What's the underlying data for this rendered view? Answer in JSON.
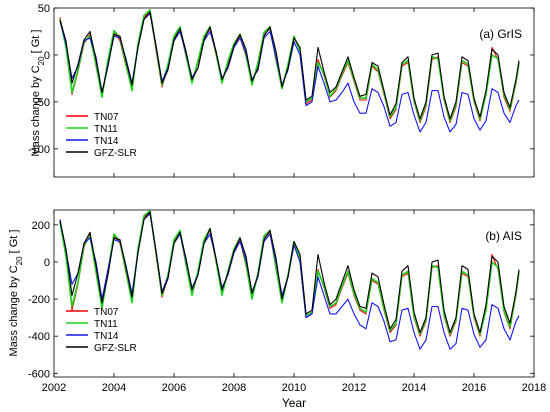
{
  "figure": {
    "xlabel": "Year",
    "x_ticks": [
      2002,
      2004,
      2006,
      2008,
      2010,
      2012,
      2014,
      2016,
      2018
    ]
  },
  "chart_data": [
    {
      "type": "line",
      "panel": "(a) GrIS",
      "ylabel": "Mass change by C",
      "ylabel_sub": "20",
      "ylabel_unit": " [ Gt ]",
      "xlim": [
        2002,
        2018
      ],
      "ylim": [
        -130,
        50
      ],
      "y_ticks": [
        50,
        0,
        -50,
        -100
      ],
      "grid": false,
      "legend_position": "left",
      "x": [
        2002.2,
        2002.4,
        2002.6,
        2002.8,
        2003.0,
        2003.2,
        2003.4,
        2003.6,
        2003.8,
        2004.0,
        2004.2,
        2004.4,
        2004.6,
        2004.8,
        2005.0,
        2005.2,
        2005.4,
        2005.6,
        2005.8,
        2006.0,
        2006.2,
        2006.4,
        2006.6,
        2006.8,
        2007.0,
        2007.2,
        2007.4,
        2007.6,
        2007.8,
        2008.0,
        2008.2,
        2008.4,
        2008.6,
        2008.8,
        2009.0,
        2009.2,
        2009.4,
        2009.6,
        2009.8,
        2010.0,
        2010.2,
        2010.4,
        2010.6,
        2010.8,
        2011.0,
        2011.2,
        2011.4,
        2011.6,
        2011.8,
        2012.0,
        2012.2,
        2012.4,
        2012.6,
        2012.8,
        2013.0,
        2013.2,
        2013.4,
        2013.6,
        2013.8,
        2014.0,
        2014.2,
        2014.4,
        2014.6,
        2014.8,
        2015.0,
        2015.2,
        2015.4,
        2015.6,
        2015.8,
        2016.0,
        2016.2,
        2016.4,
        2016.6,
        2016.8,
        2017.0,
        2017.2,
        2017.4,
        2017.5
      ],
      "series": [
        {
          "name": "TN07",
          "color": "#ff0000",
          "values": [
            40,
            10,
            -42,
            -18,
            12,
            22,
            -12,
            -44,
            -8,
            25,
            15,
            -12,
            -35,
            10,
            40,
            46,
            5,
            -34,
            -12,
            18,
            28,
            -2,
            -28,
            -8,
            18,
            28,
            0,
            -28,
            -8,
            10,
            20,
            -2,
            -30,
            -10,
            22,
            28,
            -6,
            -35,
            -12,
            18,
            5,
            -52,
            -48,
            -5,
            -22,
            -45,
            -38,
            -22,
            -8,
            -28,
            -48,
            -48,
            -12,
            -18,
            -42,
            -68,
            -58,
            -12,
            -8,
            -50,
            -72,
            -55,
            -5,
            -2,
            -48,
            -72,
            -55,
            -8,
            -12,
            -50,
            -70,
            -40,
            8,
            -5,
            -45,
            -60,
            -30,
            -10
          ]
        },
        {
          "name": "TN11",
          "color": "#1fd01f",
          "values": [
            38,
            8,
            -40,
            -16,
            14,
            20,
            -10,
            -45,
            -5,
            26,
            18,
            -10,
            -38,
            12,
            42,
            48,
            8,
            -32,
            -10,
            20,
            30,
            0,
            -30,
            -6,
            20,
            30,
            2,
            -30,
            -6,
            12,
            22,
            0,
            -32,
            -8,
            24,
            30,
            -4,
            -36,
            -10,
            20,
            4,
            -50,
            -46,
            -8,
            -20,
            -44,
            -36,
            -20,
            -6,
            -26,
            -46,
            -46,
            -10,
            -16,
            -40,
            -66,
            -56,
            -10,
            -6,
            -48,
            -70,
            -52,
            -2,
            -4,
            -46,
            -70,
            -52,
            -6,
            -10,
            -48,
            -68,
            -42,
            0,
            -4,
            -42,
            -58,
            -28,
            -8
          ]
        },
        {
          "name": "TN14",
          "color": "#1515f0",
          "values": [
            36,
            12,
            -25,
            -12,
            15,
            18,
            -2,
            -40,
            -10,
            20,
            18,
            -4,
            -30,
            8,
            38,
            44,
            10,
            -28,
            -14,
            15,
            25,
            2,
            -24,
            -14,
            15,
            25,
            4,
            -25,
            -14,
            8,
            18,
            2,
            -26,
            -16,
            18,
            25,
            -2,
            -32,
            -16,
            14,
            0,
            -54,
            -50,
            -12,
            -30,
            -50,
            -48,
            -40,
            -30,
            -50,
            -62,
            -62,
            -36,
            -40,
            -55,
            -76,
            -72,
            -42,
            -40,
            -64,
            -82,
            -72,
            -38,
            -38,
            -66,
            -82,
            -74,
            -40,
            -42,
            -68,
            -80,
            -70,
            -36,
            -40,
            -62,
            -72,
            -54,
            -48
          ]
        },
        {
          "name": "GFZ-SLR",
          "color": "#000000",
          "values": [
            37,
            15,
            -30,
            -10,
            16,
            25,
            -5,
            -40,
            -12,
            22,
            20,
            -6,
            -32,
            8,
            38,
            46,
            10,
            -30,
            -16,
            16,
            28,
            4,
            -26,
            -14,
            16,
            30,
            4,
            -26,
            -12,
            10,
            22,
            6,
            -28,
            -14,
            20,
            30,
            4,
            -34,
            -14,
            18,
            8,
            -48,
            -44,
            8,
            -18,
            -40,
            -34,
            -18,
            -2,
            -24,
            -44,
            -42,
            -8,
            -12,
            -38,
            -64,
            -52,
            -8,
            -2,
            -46,
            -68,
            -50,
            0,
            2,
            -44,
            -68,
            -50,
            -2,
            -6,
            -46,
            -66,
            -38,
            6,
            0,
            -40,
            -56,
            -26,
            -6
          ]
        }
      ]
    },
    {
      "type": "line",
      "panel": "(b) AIS",
      "ylabel": "Mass change by C",
      "ylabel_sub": "20",
      "ylabel_unit": " [ Gt ]",
      "xlim": [
        2002,
        2018
      ],
      "ylim": [
        -620,
        280
      ],
      "y_ticks": [
        200,
        0,
        -200,
        -400,
        -600
      ],
      "grid": false,
      "legend_position": "left",
      "x": [
        2002.2,
        2002.4,
        2002.6,
        2002.8,
        2003.0,
        2003.2,
        2003.4,
        2003.6,
        2003.8,
        2004.0,
        2004.2,
        2004.4,
        2004.6,
        2004.8,
        2005.0,
        2005.2,
        2005.4,
        2005.6,
        2005.8,
        2006.0,
        2006.2,
        2006.4,
        2006.6,
        2006.8,
        2007.0,
        2007.2,
        2007.4,
        2007.6,
        2007.8,
        2008.0,
        2008.2,
        2008.4,
        2008.6,
        2008.8,
        2009.0,
        2009.2,
        2009.4,
        2009.6,
        2009.8,
        2010.0,
        2010.2,
        2010.4,
        2010.6,
        2010.8,
        2011.0,
        2011.2,
        2011.4,
        2011.6,
        2011.8,
        2012.0,
        2012.2,
        2012.4,
        2012.6,
        2012.8,
        2013.0,
        2013.2,
        2013.4,
        2013.6,
        2013.8,
        2014.0,
        2014.2,
        2014.4,
        2014.6,
        2014.8,
        2015.0,
        2015.2,
        2015.4,
        2015.6,
        2015.8,
        2016.0,
        2016.2,
        2016.4,
        2016.6,
        2016.8,
        2017.0,
        2017.2,
        2017.4,
        2017.5
      ],
      "series": [
        {
          "name": "TN07",
          "color": "#ff0000",
          "values": [
            225,
            40,
            -260,
            -120,
            80,
            150,
            -60,
            -240,
            -60,
            140,
            100,
            -60,
            -200,
            60,
            240,
            270,
            40,
            -190,
            -80,
            110,
            160,
            -20,
            -170,
            -60,
            110,
            170,
            0,
            -170,
            -60,
            60,
            120,
            -20,
            -190,
            -70,
            130,
            160,
            -40,
            -210,
            -80,
            100,
            20,
            -300,
            -280,
            -40,
            -140,
            -250,
            -230,
            -140,
            -60,
            -180,
            -260,
            -280,
            -100,
            -120,
            -260,
            -380,
            -340,
            -80,
            -60,
            -300,
            -400,
            -320,
            -30,
            -20,
            -290,
            -400,
            -320,
            -60,
            -80,
            -300,
            -400,
            -250,
            40,
            -40,
            -270,
            -360,
            -180,
            -60
          ]
        },
        {
          "name": "TN11",
          "color": "#1fd01f",
          "values": [
            215,
            30,
            -240,
            -110,
            90,
            140,
            -50,
            -250,
            -50,
            150,
            110,
            -50,
            -220,
            70,
            250,
            275,
            50,
            -180,
            -70,
            120,
            170,
            -10,
            -180,
            -50,
            120,
            180,
            10,
            -180,
            -50,
            70,
            130,
            -10,
            -200,
            -60,
            140,
            170,
            -30,
            -220,
            -70,
            110,
            10,
            -290,
            -270,
            -50,
            -130,
            -240,
            -220,
            -130,
            -50,
            -170,
            -250,
            -270,
            -90,
            -110,
            -250,
            -370,
            -330,
            -70,
            -50,
            -290,
            -390,
            -310,
            -20,
            -30,
            -280,
            -390,
            -310,
            -50,
            -70,
            -290,
            -390,
            -260,
            0,
            -30,
            -260,
            -350,
            -170,
            -50
          ]
        },
        {
          "name": "TN14",
          "color": "#1515f0",
          "values": [
            230,
            60,
            -120,
            -60,
            100,
            130,
            0,
            -200,
            -40,
            120,
            110,
            -20,
            -170,
            50,
            230,
            260,
            60,
            -160,
            -80,
            100,
            150,
            10,
            -140,
            -70,
            100,
            150,
            20,
            -140,
            -70,
            50,
            110,
            10,
            -160,
            -80,
            110,
            150,
            0,
            -180,
            -80,
            90,
            0,
            -300,
            -280,
            -80,
            -180,
            -280,
            -280,
            -240,
            -200,
            -280,
            -340,
            -360,
            -220,
            -240,
            -320,
            -430,
            -420,
            -260,
            -250,
            -380,
            -470,
            -420,
            -240,
            -240,
            -380,
            -470,
            -440,
            -250,
            -260,
            -390,
            -460,
            -420,
            -230,
            -250,
            -360,
            -420,
            -320,
            -290
          ]
        },
        {
          "name": "GFZ-SLR",
          "color": "#000000",
          "values": [
            220,
            70,
            -180,
            -60,
            100,
            160,
            -20,
            -220,
            -70,
            130,
            120,
            -30,
            -190,
            50,
            230,
            270,
            60,
            -170,
            -90,
            100,
            160,
            20,
            -150,
            -70,
            100,
            180,
            20,
            -150,
            -60,
            60,
            130,
            30,
            -170,
            -70,
            120,
            170,
            20,
            -200,
            -80,
            110,
            40,
            -280,
            -260,
            40,
            -110,
            -230,
            -200,
            -110,
            -20,
            -150,
            -240,
            -250,
            -60,
            -80,
            -230,
            -360,
            -310,
            -50,
            -20,
            -270,
            -380,
            -300,
            0,
            10,
            -260,
            -380,
            -300,
            -20,
            -40,
            -280,
            -380,
            -230,
            30,
            0,
            -240,
            -330,
            -160,
            -40
          ]
        }
      ]
    }
  ]
}
